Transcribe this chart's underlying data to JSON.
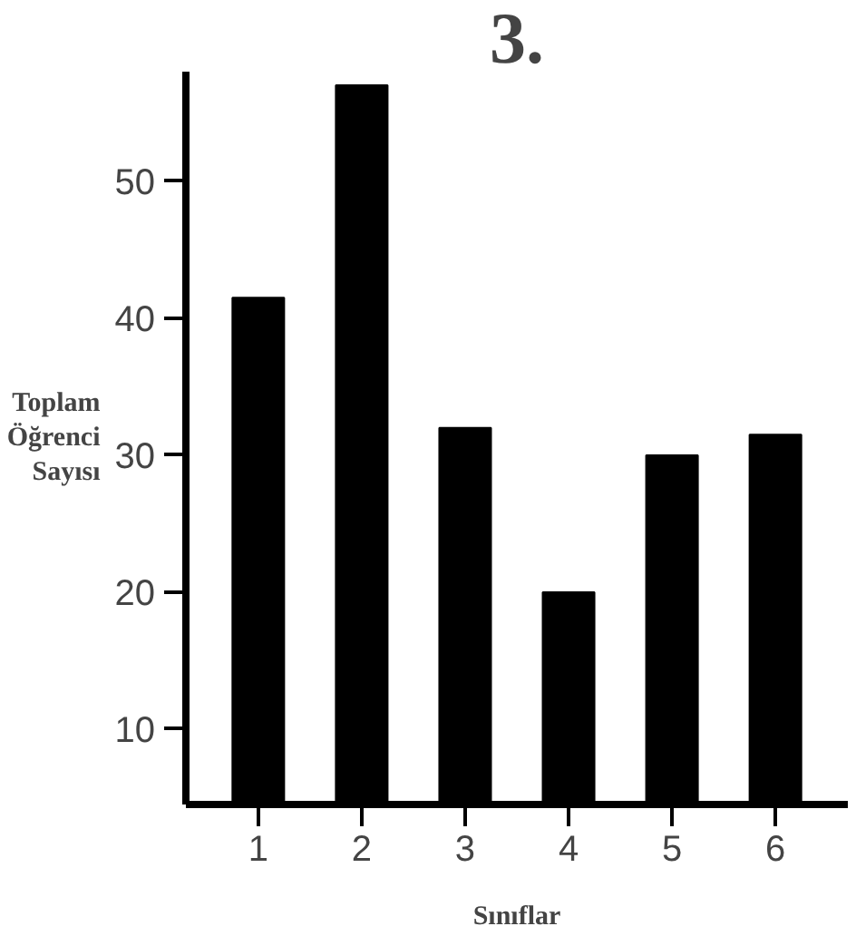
{
  "chart_data": {
    "type": "bar",
    "title": "3.",
    "xlabel": "Sınıflar",
    "ylabel": "Toplam\nÖğrenci\nSayısı",
    "categories": [
      "1",
      "2",
      "3",
      "4",
      "5",
      "6"
    ],
    "values": [
      41.5,
      57,
      32,
      20,
      30,
      31.5
    ],
    "color": "#000000",
    "ylim": [
      4.5,
      58
    ],
    "yticks": [
      10,
      20,
      30,
      40,
      50
    ],
    "grid": false
  }
}
